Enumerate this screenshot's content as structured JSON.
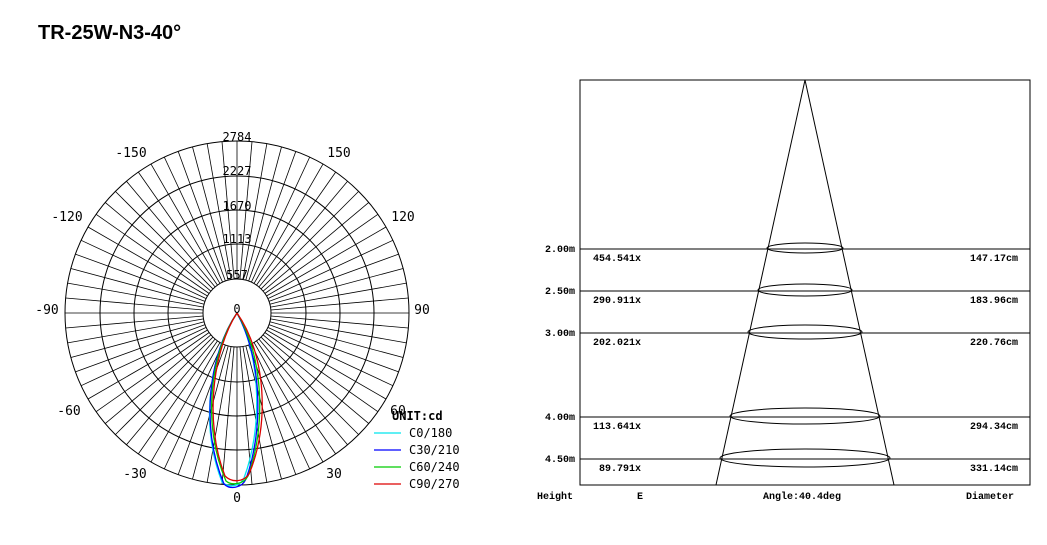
{
  "title": "TR-25W-N3-40°",
  "polar": {
    "unit_label": "UNIT:cd",
    "radial_labels": [
      "2784",
      "2227",
      "1670",
      "1113",
      "557",
      "0"
    ],
    "angle_labels": {
      "top_left": "-150",
      "top_right": "150",
      "upper_left": "-120",
      "upper_right": "120",
      "left": "-90",
      "right": "90",
      "lower_left": "-60",
      "lower_right": "60",
      "bottom_left": "-30",
      "bottom_right": "30",
      "bottom": "0"
    },
    "legend": [
      {
        "label": "C0/180",
        "color": "#00e5ee"
      },
      {
        "label": "C30/210",
        "color": "#0000ff"
      },
      {
        "label": "C60/240",
        "color": "#00cc00"
      },
      {
        "label": "C90/270",
        "color": "#dd0000"
      }
    ]
  },
  "cone": {
    "rows": [
      {
        "height": "2.00m",
        "lux": "454.541x",
        "diameter": "147.17cm"
      },
      {
        "height": "2.50m",
        "lux": "290.911x",
        "diameter": "183.96cm"
      },
      {
        "height": "3.00m",
        "lux": "202.021x",
        "diameter": "220.76cm"
      },
      {
        "height": "4.00m",
        "lux": "113.641x",
        "diameter": "294.34cm"
      },
      {
        "height": "4.50m",
        "lux": "89.791x",
        "diameter": "331.14cm"
      }
    ],
    "footer": {
      "height": "Height",
      "e": "E",
      "angle": "Angle:40.4deg",
      "diameter": "Diameter"
    }
  }
}
